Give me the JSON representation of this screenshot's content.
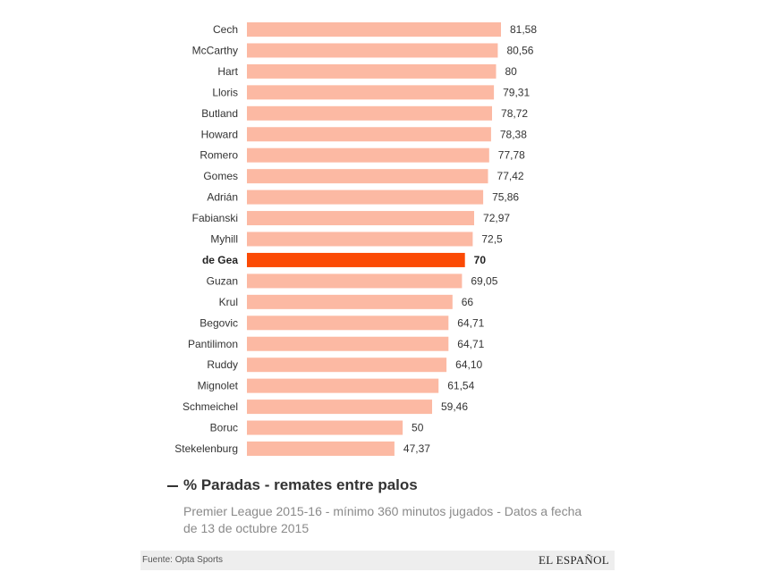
{
  "chart_data": {
    "type": "bar",
    "orientation": "horizontal",
    "categories": [
      "Cech",
      "McCarthy",
      "Hart",
      "Lloris",
      "Butland",
      "Howard",
      "Romero",
      "Gomes",
      "Adrián",
      "Fabianski",
      "Myhill",
      "de Gea",
      "Guzan",
      "Krul",
      "Begovic",
      "Pantilimon",
      "Ruddy",
      "Mignolet",
      "Schmeichel",
      "Boruc",
      "Stekelenburg"
    ],
    "values": [
      81.58,
      80.56,
      80,
      79.31,
      78.72,
      78.38,
      77.78,
      77.42,
      75.86,
      72.97,
      72.5,
      70,
      69.05,
      66,
      64.71,
      64.71,
      64.1,
      61.54,
      59.46,
      50,
      47.37
    ],
    "value_labels": [
      "81,58",
      "80,56",
      "80",
      "79,31",
      "78,72",
      "78,38",
      "77,78",
      "77,42",
      "75,86",
      "72,97",
      "72,5",
      "70",
      "69,05",
      "66",
      "64,71",
      "64,71",
      "64,10",
      "61,54",
      "59,46",
      "50",
      "47,37"
    ],
    "highlight": "de Gea",
    "xlim": [
      0,
      81.58
    ],
    "legend": "% Paradas - remates entre palos",
    "note": "Premier League 2015-16 - mínimo 360 minutos jugados - Datos a fecha de 13 de octubre 2015"
  },
  "colors": {
    "bar": "#fcb9a3",
    "highlight": "#fb4a05",
    "text": "#333333",
    "note": "#8a8a8a",
    "footer_bg": "#eeeeee"
  },
  "footer": {
    "source": "Fuente: Opta Sports",
    "brand": "EL ESPAÑOL"
  }
}
